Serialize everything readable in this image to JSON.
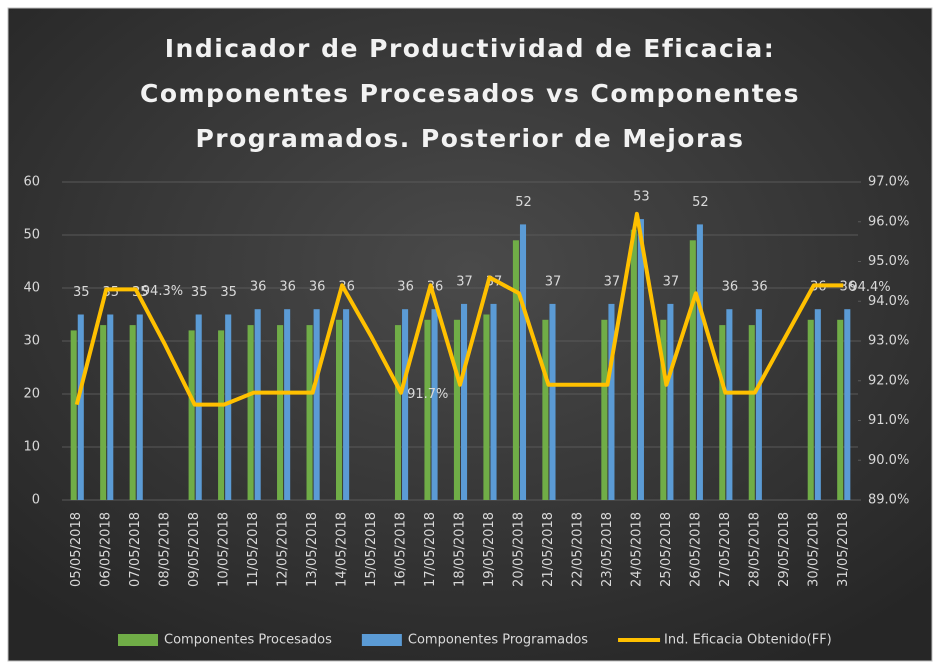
{
  "chart_data": {
    "type": "bar-line",
    "title": [
      "Indicador de Productividad de Eficacia:",
      "Componentes Procesados vs Componentes",
      "Programados. Posterior de Mejoras"
    ],
    "categories": [
      "05/05/2018",
      "06/05/2018",
      "07/05/2018",
      "08/05/2018",
      "09/05/2018",
      "10/05/2018",
      "11/05/2018",
      "12/05/2018",
      "13/05/2018",
      "14/05/2018",
      "15/05/2018",
      "16/05/2018",
      "17/05/2018",
      "18/05/2018",
      "19/05/2018",
      "20/05/2018",
      "21/05/2018",
      "22/05/2018",
      "23/05/2018",
      "24/05/2018",
      "25/05/2018",
      "26/05/2018",
      "27/05/2018",
      "28/05/2018",
      "29/05/2018",
      "30/05/2018",
      "31/05/2018"
    ],
    "series": [
      {
        "name": "Componentes Procesados",
        "color": "#70ad47",
        "kind": "bar",
        "values": [
          32,
          33,
          33,
          null,
          32,
          32,
          33,
          33,
          33,
          34,
          null,
          33,
          34,
          34,
          35,
          49,
          34,
          null,
          34,
          51,
          34,
          49,
          33,
          33,
          null,
          34,
          34
        ]
      },
      {
        "name": "Componentes Programados",
        "color": "#5b9bd5",
        "kind": "bar",
        "show_labels": true,
        "values": [
          35,
          35,
          35,
          null,
          35,
          35,
          36,
          36,
          36,
          36,
          null,
          36,
          36,
          37,
          37,
          52,
          37,
          null,
          37,
          53,
          37,
          52,
          36,
          36,
          null,
          36,
          36
        ]
      },
      {
        "name": "Ind. Eficacia Obtenido(FF)",
        "color": "#ffc000",
        "kind": "line",
        "axis": "y2",
        "values": [
          91.4,
          94.3,
          94.3,
          92.9,
          91.4,
          91.4,
          91.7,
          91.7,
          91.7,
          94.4,
          93.1,
          91.7,
          94.4,
          91.9,
          94.6,
          94.2,
          91.9,
          91.9,
          91.9,
          96.2,
          91.9,
          94.2,
          91.7,
          91.7,
          93.05,
          94.4,
          94.4
        ],
        "value_labels": [
          null,
          null,
          "94.3%",
          null,
          null,
          null,
          null,
          null,
          null,
          null,
          null,
          "91.7%",
          null,
          null,
          null,
          null,
          null,
          null,
          null,
          null,
          null,
          null,
          null,
          null,
          null,
          null,
          "94.4%"
        ]
      }
    ],
    "ylim": [
      0,
      60
    ],
    "yticks": [
      0,
      10,
      20,
      30,
      40,
      50,
      60
    ],
    "y2lim": [
      89,
      97
    ],
    "y2ticks": [
      {
        "value": 89,
        "label": "89.0%"
      },
      {
        "value": 90,
        "label": "90.0%"
      },
      {
        "value": 91,
        "label": "91.0%"
      },
      {
        "value": 92,
        "label": "92.0%"
      },
      {
        "value": 93,
        "label": "93.0%"
      },
      {
        "value": 94,
        "label": "94.0%"
      },
      {
        "value": 95,
        "label": "95.0%"
      },
      {
        "value": 96,
        "label": "96.0%"
      },
      {
        "value": 97,
        "label": "97.0%"
      }
    ],
    "grid": true,
    "legend": "bottom"
  }
}
